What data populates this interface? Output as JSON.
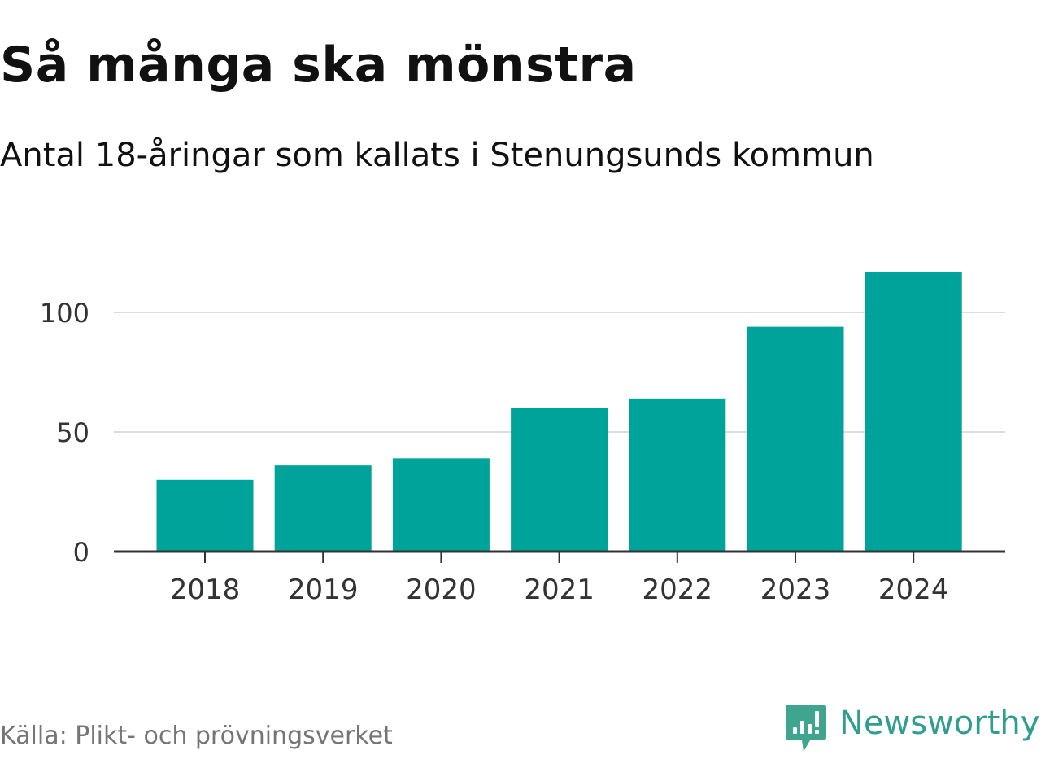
{
  "header": {
    "title": "Så många ska mönstra",
    "subtitle": "Antal 18-åringar som kallats i Stenungsunds kommun"
  },
  "footer": {
    "source": "Källa: Plikt- och prövningsverket",
    "brand": "Newsworthy",
    "brand_icon": "newsworthy-logo-icon"
  },
  "colors": {
    "bar": "#00a39a",
    "grid": "#dddddd",
    "axis": "#333333",
    "tick_text": "#333333",
    "brand": "#2f9e90",
    "source_text": "#757575"
  },
  "chart_data": {
    "type": "bar",
    "title": "Så många ska mönstra",
    "subtitle": "Antal 18-åringar som kallats i Stenungsunds kommun",
    "xlabel": "",
    "ylabel": "",
    "categories": [
      "2018",
      "2019",
      "2020",
      "2021",
      "2022",
      "2023",
      "2024"
    ],
    "values": [
      30,
      36,
      39,
      60,
      64,
      94,
      117
    ],
    "ylim": [
      0,
      120
    ],
    "yticks": [
      0,
      50,
      100
    ],
    "grid": true,
    "legend": "none"
  }
}
